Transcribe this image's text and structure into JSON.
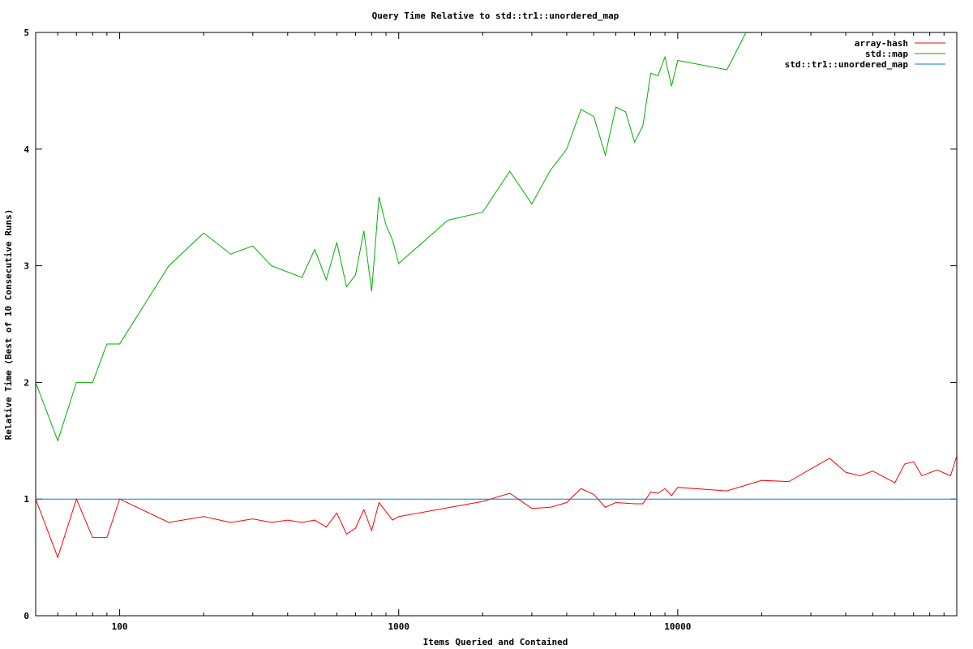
{
  "chart_data": {
    "type": "line",
    "title": "Query Time Relative to std::tr1::unordered_map",
    "xlabel": "Items Queried and Contained",
    "ylabel": "Relative Time (Best of 10 Consecutive Runs)",
    "xscale": "log",
    "xlim": [
      50,
      100000
    ],
    "ylim": [
      0,
      5
    ],
    "x_ticks": [
      100,
      1000,
      10000
    ],
    "y_ticks": [
      0,
      1,
      2,
      3,
      4,
      5
    ],
    "grid": false,
    "legend_position": "top-right",
    "series": [
      {
        "name": "array-hash",
        "color": "#ff0000",
        "points": [
          [
            50,
            1.0
          ],
          [
            60,
            0.5
          ],
          [
            70,
            1.0
          ],
          [
            80,
            0.67
          ],
          [
            90,
            0.67
          ],
          [
            100,
            1.0
          ],
          [
            150,
            0.8
          ],
          [
            200,
            0.85
          ],
          [
            250,
            0.8
          ],
          [
            300,
            0.83
          ],
          [
            350,
            0.8
          ],
          [
            400,
            0.82
          ],
          [
            450,
            0.8
          ],
          [
            500,
            0.82
          ],
          [
            550,
            0.76
          ],
          [
            600,
            0.88
          ],
          [
            650,
            0.7
          ],
          [
            700,
            0.75
          ],
          [
            750,
            0.91
          ],
          [
            800,
            0.73
          ],
          [
            850,
            0.97
          ],
          [
            950,
            0.82
          ],
          [
            1000,
            0.85
          ],
          [
            2000,
            0.98
          ],
          [
            2500,
            1.05
          ],
          [
            3000,
            0.92
          ],
          [
            3500,
            0.93
          ],
          [
            4000,
            0.97
          ],
          [
            4500,
            1.09
          ],
          [
            5000,
            1.04
          ],
          [
            5500,
            0.93
          ],
          [
            6000,
            0.97
          ],
          [
            7000,
            0.96
          ],
          [
            7500,
            0.96
          ],
          [
            8000,
            1.06
          ],
          [
            8500,
            1.05
          ],
          [
            9000,
            1.09
          ],
          [
            9500,
            1.03
          ],
          [
            10000,
            1.1
          ],
          [
            15000,
            1.07
          ],
          [
            20000,
            1.16
          ],
          [
            25000,
            1.15
          ],
          [
            35000,
            1.35
          ],
          [
            40000,
            1.23
          ],
          [
            45000,
            1.2
          ],
          [
            50000,
            1.24
          ],
          [
            60000,
            1.14
          ],
          [
            65000,
            1.3
          ],
          [
            70000,
            1.32
          ],
          [
            75000,
            1.2
          ],
          [
            85000,
            1.25
          ],
          [
            95000,
            1.2
          ],
          [
            100000,
            1.37
          ]
        ]
      },
      {
        "name": "std::map",
        "color": "#00b000",
        "points": [
          [
            50,
            2.0
          ],
          [
            60,
            1.5
          ],
          [
            70,
            2.0
          ],
          [
            80,
            2.0
          ],
          [
            90,
            2.33
          ],
          [
            100,
            2.33
          ],
          [
            150,
            3.0
          ],
          [
            200,
            3.28
          ],
          [
            250,
            3.1
          ],
          [
            300,
            3.17
          ],
          [
            350,
            3.0
          ],
          [
            450,
            2.9
          ],
          [
            500,
            3.14
          ],
          [
            550,
            2.88
          ],
          [
            600,
            3.2
          ],
          [
            650,
            2.82
          ],
          [
            700,
            2.92
          ],
          [
            750,
            3.3
          ],
          [
            800,
            2.78
          ],
          [
            850,
            3.59
          ],
          [
            900,
            3.35
          ],
          [
            950,
            3.22
          ],
          [
            1000,
            3.02
          ],
          [
            1500,
            3.39
          ],
          [
            2000,
            3.46
          ],
          [
            2500,
            3.81
          ],
          [
            3000,
            3.53
          ],
          [
            3500,
            3.82
          ],
          [
            4000,
            4.0
          ],
          [
            4500,
            4.34
          ],
          [
            5000,
            4.28
          ],
          [
            5500,
            3.95
          ],
          [
            6000,
            4.36
          ],
          [
            6500,
            4.32
          ],
          [
            7000,
            4.06
          ],
          [
            7500,
            4.2
          ],
          [
            8000,
            4.65
          ],
          [
            8500,
            4.63
          ],
          [
            9000,
            4.79
          ],
          [
            9500,
            4.54
          ],
          [
            10000,
            4.76
          ],
          [
            15000,
            4.68
          ],
          [
            18000,
            5.05
          ],
          [
            100000,
            5.6
          ]
        ]
      },
      {
        "name": "std::tr1::unordered_map",
        "color": "#0080d0",
        "points": [
          [
            50,
            1.0
          ],
          [
            100000,
            1.0
          ]
        ]
      }
    ]
  }
}
